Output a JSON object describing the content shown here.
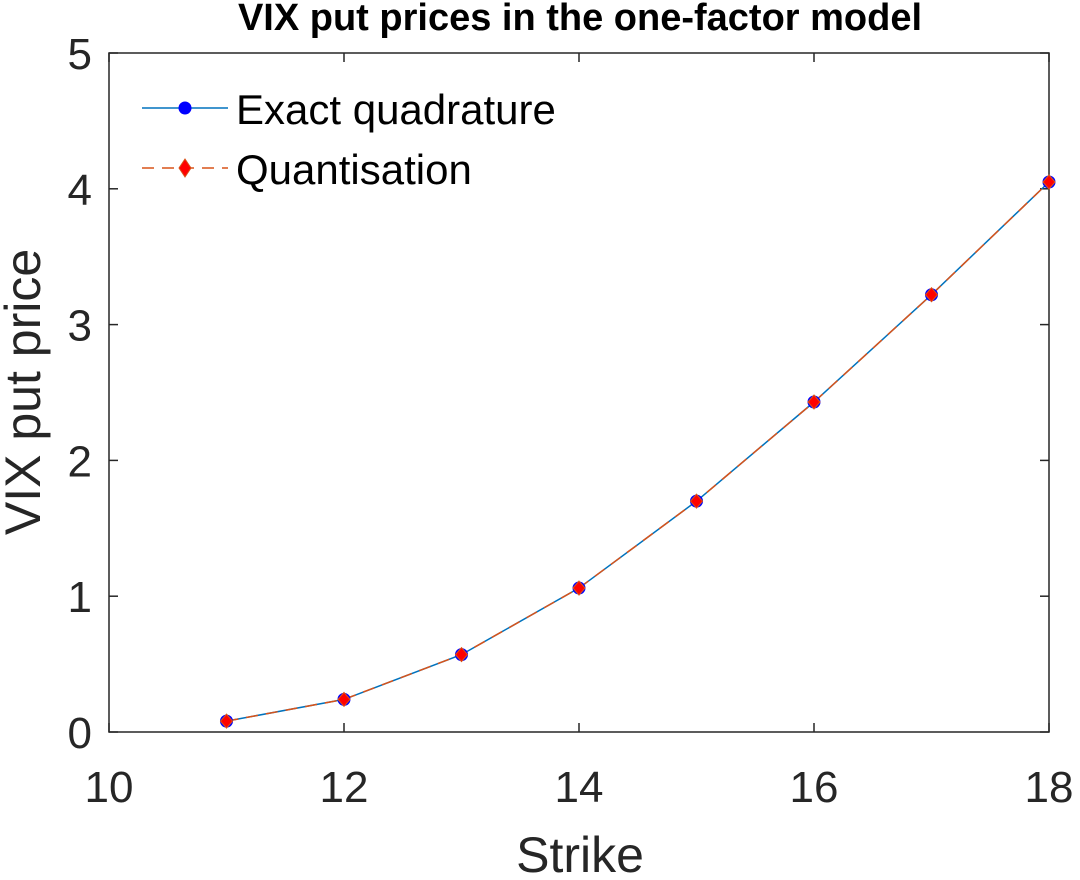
{
  "chart_data": {
    "type": "line",
    "title": "VIX put prices in the one-factor model",
    "xlabel": "Strike",
    "ylabel": "VIX put price",
    "xlim": [
      10,
      18
    ],
    "ylim": [
      0,
      5
    ],
    "xticks": [
      10,
      12,
      14,
      16,
      18
    ],
    "yticks": [
      0,
      1,
      2,
      3,
      4,
      5
    ],
    "grid": false,
    "legend_position": "top-left",
    "x": [
      11,
      12,
      13,
      14,
      15,
      16,
      17,
      18
    ],
    "series": [
      {
        "name": "Exact quadrature",
        "values": [
          0.08,
          0.24,
          0.57,
          1.06,
          1.7,
          2.43,
          3.22,
          4.05
        ],
        "color": "#0072BD",
        "marker": "circle",
        "marker_color": "#0000FF",
        "line_style": "solid"
      },
      {
        "name": "Quantisation",
        "values": [
          0.08,
          0.24,
          0.57,
          1.06,
          1.7,
          2.43,
          3.22,
          4.05
        ],
        "color": "#D95319",
        "marker": "diamond",
        "marker_color": "#FF0000",
        "line_style": "dashed"
      }
    ]
  }
}
